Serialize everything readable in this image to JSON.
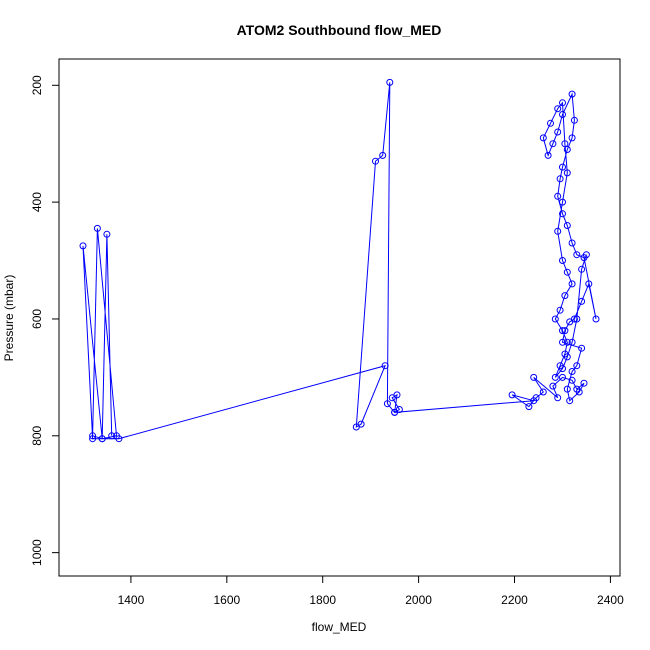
{
  "chart_data": {
    "type": "line",
    "title": "ATOM2 Southbound flow_MED",
    "xlabel": "flow_MED",
    "ylabel": "Pressure (mbar)",
    "xlim": [
      1250,
      2420
    ],
    "ylim": [
      1040,
      155
    ],
    "y_reversed": true,
    "x_ticks": [
      1400,
      1600,
      1800,
      2000,
      2200,
      2400
    ],
    "y_ticks": [
      200,
      400,
      600,
      800,
      1000
    ],
    "series": [
      {
        "color": "#0000ff",
        "marker": "open-circle",
        "points": [
          [
            1360,
            800
          ],
          [
            1350,
            455
          ],
          [
            1340,
            805
          ],
          [
            1370,
            800
          ],
          [
            1330,
            445
          ],
          [
            1320,
            800
          ],
          [
            1340,
            805
          ],
          [
            1300,
            475
          ],
          [
            1320,
            805
          ],
          [
            1375,
            805
          ],
          [
            1930,
            680
          ],
          [
            1880,
            780
          ],
          [
            1870,
            785
          ],
          [
            1910,
            330
          ],
          [
            1925,
            320
          ],
          [
            1940,
            195
          ],
          [
            1935,
            745
          ],
          [
            1950,
            760
          ],
          [
            1960,
            755
          ],
          [
            1945,
            735
          ],
          [
            1955,
            730
          ],
          [
            1950,
            760
          ],
          [
            2240,
            740
          ],
          [
            2195,
            730
          ],
          [
            2230,
            750
          ],
          [
            2245,
            735
          ],
          [
            2260,
            725
          ],
          [
            2240,
            700
          ],
          [
            2290,
            735
          ],
          [
            2280,
            715
          ],
          [
            2300,
            700
          ],
          [
            2320,
            705
          ],
          [
            2330,
            720
          ],
          [
            2345,
            710
          ],
          [
            2335,
            725
          ],
          [
            2315,
            740
          ],
          [
            2310,
            720
          ],
          [
            2320,
            690
          ],
          [
            2330,
            680
          ],
          [
            2340,
            650
          ],
          [
            2300,
            640
          ],
          [
            2305,
            620
          ],
          [
            2315,
            605
          ],
          [
            2325,
            600
          ],
          [
            2340,
            570
          ],
          [
            2355,
            540
          ],
          [
            2370,
            600
          ],
          [
            2345,
            495
          ],
          [
            2330,
            490
          ],
          [
            2320,
            470
          ],
          [
            2310,
            440
          ],
          [
            2300,
            420
          ],
          [
            2290,
            390
          ],
          [
            2295,
            360
          ],
          [
            2300,
            340
          ],
          [
            2310,
            310
          ],
          [
            2320,
            290
          ],
          [
            2325,
            260
          ],
          [
            2320,
            215
          ],
          [
            2300,
            250
          ],
          [
            2290,
            280
          ],
          [
            2280,
            300
          ],
          [
            2270,
            320
          ],
          [
            2260,
            290
          ],
          [
            2275,
            265
          ],
          [
            2290,
            240
          ],
          [
            2300,
            230
          ],
          [
            2305,
            300
          ],
          [
            2310,
            350
          ],
          [
            2300,
            400
          ],
          [
            2290,
            450
          ],
          [
            2300,
            500
          ],
          [
            2310,
            520
          ],
          [
            2320,
            540
          ],
          [
            2305,
            560
          ],
          [
            2295,
            585
          ],
          [
            2285,
            600
          ],
          [
            2300,
            620
          ],
          [
            2310,
            640
          ],
          [
            2305,
            660
          ],
          [
            2295,
            680
          ],
          [
            2285,
            700
          ],
          [
            2300,
            685
          ],
          [
            2310,
            665
          ],
          [
            2320,
            640
          ],
          [
            2330,
            600
          ],
          [
            2340,
            515
          ],
          [
            2350,
            490
          ]
        ]
      }
    ]
  }
}
